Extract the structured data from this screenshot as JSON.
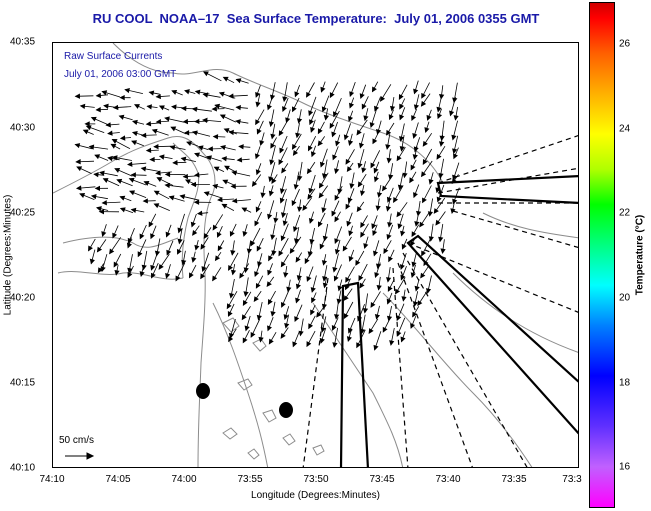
{
  "header": {
    "title": "RU COOL  NOAA–17  Sea Surface Temperature:  July 01, 2006 0355 GMT"
  },
  "map": {
    "overlay_label": "Raw Surface Currents",
    "date_label": "July 01, 2006 03:00 GMT",
    "scale_label": "50 cm/s",
    "xlabel": "Longitude (Degrees:Minutes)",
    "ylabel": "Latitude (Degrees:Minutes)",
    "x_ticks": [
      "74:10",
      "74:05",
      "74:00",
      "73:55",
      "73:50",
      "73:45",
      "73:40",
      "73:35",
      "73:3"
    ],
    "y_ticks": [
      "40:35",
      "40:30",
      "40:25",
      "40:20",
      "40:15",
      "40:10"
    ],
    "xlim": [
      "74:10",
      "73:30"
    ],
    "ylim": [
      "40:10",
      "40:35"
    ],
    "colors": {
      "title": "#1a1aa8",
      "vectors": "#000000",
      "contours": "#8c8c8c"
    }
  },
  "colorbar": {
    "label": "Temperature (°C)",
    "ticks": [
      "26",
      "24",
      "22",
      "20",
      "18",
      "16"
    ],
    "range": [
      15,
      27
    ]
  }
}
